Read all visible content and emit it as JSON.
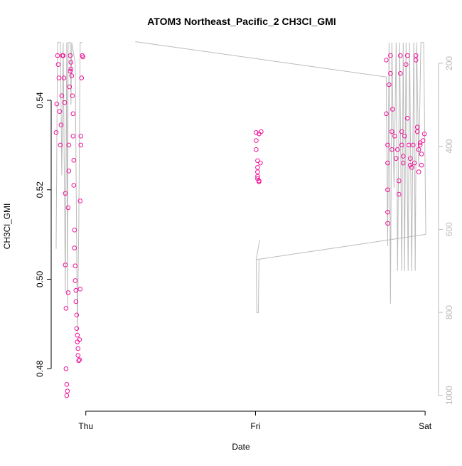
{
  "chart_data": {
    "type": "scatter",
    "title": "ATOM3 Northeast_Pacific_2 CH3Cl_GMI",
    "xlabel": "Date",
    "ylabel": "CH3Cl_GMI",
    "xlim": [
      -4.9,
      49.9
    ],
    "xticks": [
      {
        "value": 0,
        "label": "Thu"
      },
      {
        "value": 24,
        "label": "Fri"
      },
      {
        "value": 48,
        "label": "Sat"
      }
    ],
    "ylim": [
      0.4705,
      0.5532
    ],
    "yticks": [
      0.48,
      {
        "value": 0.5,
        "label": "0.50"
      },
      0.52,
      0.54
    ],
    "y2lim": [
      1038,
      147
    ],
    "y2ticks": [
      200,
      400,
      600,
      800,
      1000
    ],
    "series": [
      {
        "type": "scatter",
        "color": "#f0149b",
        "x": [
          -4.2,
          -4.1,
          -4.0,
          -3.9,
          -3.8,
          -3.7,
          -3.6,
          -3.5,
          -3.4,
          -3.3,
          -3.2,
          -3.1,
          -3.0,
          -2.9,
          -2.9,
          -2.8,
          -2.8,
          -2.7,
          -2.7,
          -2.6,
          -2.5,
          -2.5,
          -2.4,
          -2.4,
          -2.3,
          -2.2,
          -2.2,
          -2.1,
          -2.1,
          -2.0,
          -1.9,
          -1.8,
          -1.8,
          -1.7,
          -1.7,
          -1.6,
          -1.6,
          -1.5,
          -1.5,
          -1.4,
          -1.4,
          -1.3,
          -1.3,
          -1.2,
          -1.2,
          -1.1,
          -1.1,
          -1.0,
          -0.9,
          -0.9,
          -0.8,
          -0.8,
          -0.7,
          -0.7,
          -0.6,
          -0.5,
          -0.4,
          24.1,
          24.1,
          24.1,
          24.3,
          24.3,
          24.3,
          24.3,
          24.3,
          24.5,
          24.5,
          24.5,
          24.7,
          24.8,
          42.5,
          42.5,
          42.7,
          42.7,
          42.7,
          42.7,
          42.7,
          42.9,
          43.1,
          43.1,
          43.3,
          43.3,
          43.4,
          43.7,
          43.9,
          44.1,
          44.3,
          44.3,
          44.5,
          44.5,
          44.7,
          44.7,
          44.9,
          44.9,
          45.1,
          45.3,
          45.5,
          45.5,
          45.7,
          45.9,
          45.9,
          46.1,
          46.3,
          46.5,
          46.7,
          46.7,
          46.9,
          46.9,
          47.1,
          47.1,
          47.3,
          47.3,
          47.5,
          47.5,
          47.7,
          47.9
        ],
        "values": [
          0.5328,
          0.5392,
          0.55,
          0.548,
          0.545,
          0.5375,
          0.53,
          0.5345,
          0.541,
          0.55,
          0.55,
          0.545,
          0.5395,
          0.5192,
          0.5032,
          0.4935,
          0.48,
          0.4765,
          0.474,
          0.475,
          0.497,
          0.516,
          0.5242,
          0.53,
          0.543,
          0.55,
          0.5465,
          0.547,
          0.5485,
          0.5455,
          0.541,
          0.537,
          0.532,
          0.5266,
          0.521,
          0.511,
          0.507,
          0.503,
          0.4997,
          0.4975,
          0.495,
          0.492,
          0.489,
          0.4875,
          0.486,
          0.4845,
          0.483,
          0.4818,
          0.482,
          0.4865,
          0.4978,
          0.5175,
          0.53,
          0.532,
          0.545,
          0.55,
          0.5497,
          0.5328,
          0.531,
          0.529,
          0.5265,
          0.525,
          0.524,
          0.523,
          0.5225,
          0.522,
          0.5218,
          0.5325,
          0.526,
          0.533,
          0.549,
          0.537,
          0.53,
          0.526,
          0.52,
          0.515,
          0.5125,
          0.5435,
          0.55,
          0.546,
          0.533,
          0.529,
          0.538,
          0.532,
          0.527,
          0.529,
          0.522,
          0.519,
          0.55,
          0.546,
          0.533,
          0.53,
          0.5275,
          0.526,
          0.532,
          0.548,
          0.55,
          0.536,
          0.53,
          0.527,
          0.5255,
          0.525,
          0.53,
          0.526,
          0.549,
          0.55,
          0.534,
          0.533,
          0.529,
          0.524,
          0.53,
          0.5305,
          0.5255,
          0.528,
          0.531,
          0.5325
        ]
      },
      {
        "type": "line",
        "axis": "y2",
        "color": "#bbbbbb",
        "x": [
          -4.2,
          -4.0,
          -3.6,
          -3.4,
          -3.2,
          -2.9,
          -2.7,
          -2.6,
          -2.5,
          -2.2,
          -2.1,
          -2.0,
          -1.5,
          -1.2,
          -1.0,
          -0.8,
          -0.5,
          null,
          7,
          42.5,
          42.7,
          42.9,
          43.1,
          43.3,
          43.6,
          43.9,
          44.1,
          44.4,
          44.7,
          44.9,
          45.1,
          45.3,
          45.6,
          45.8,
          46.1,
          46.4,
          46.6,
          46.8,
          47.1,
          47.4,
          47.8,
          48.1,
          null,
          24.6,
          24.1,
          24.2,
          24.4,
          24.5,
          null,
          24.1,
          48.1
        ],
        "values": [
          647,
          150,
          150,
          470,
          150,
          750,
          150,
          790,
          150,
          150,
          300,
          150,
          200,
          850,
          600,
          150,
          150,
          null,
          148,
          233,
          640,
          150,
          780,
          150,
          500,
          150,
          700,
          150,
          700,
          150,
          700,
          150,
          700,
          150,
          700,
          150,
          700,
          150,
          450,
          150,
          150,
          612,
          null,
          625,
          673,
          801,
          801,
          673,
          null,
          673,
          612
        ]
      }
    ]
  }
}
